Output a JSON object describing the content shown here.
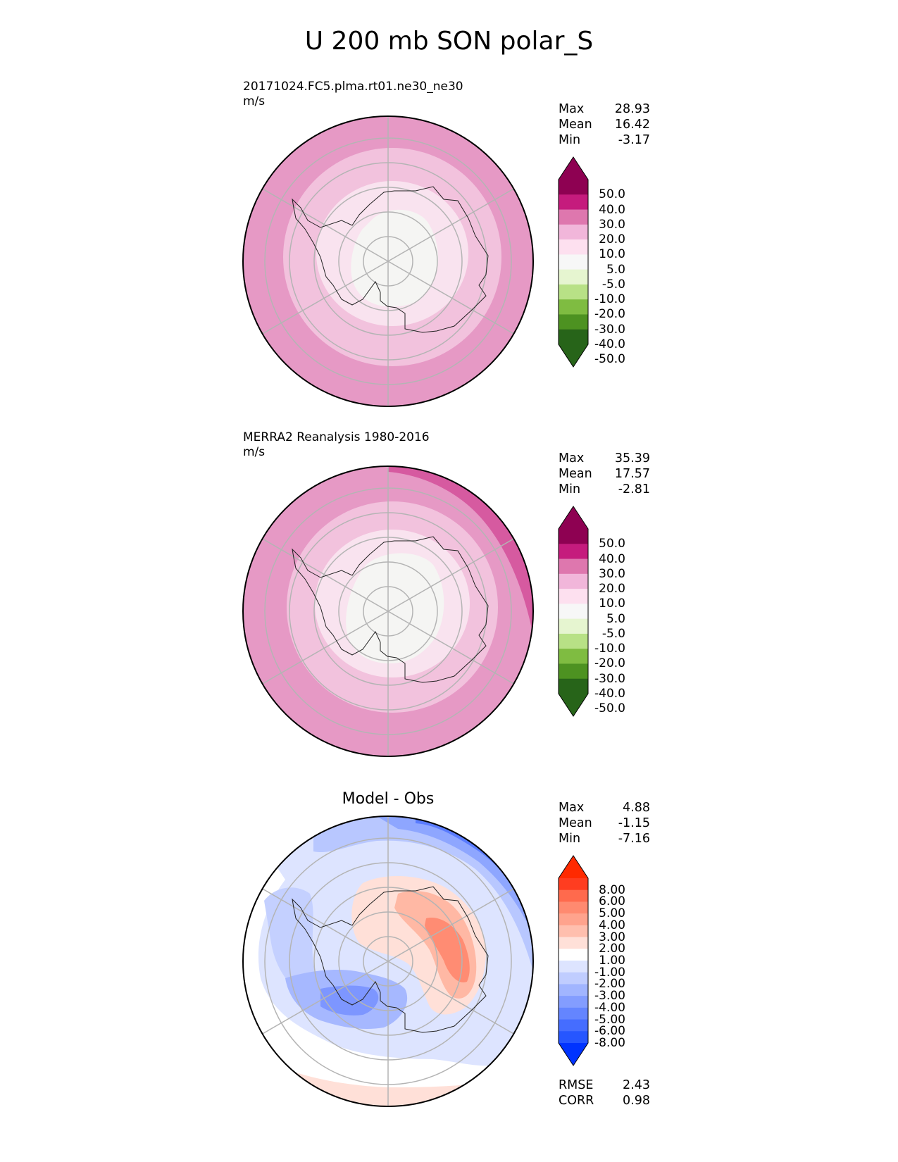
{
  "figure": {
    "title": "U 200 mb SON polar_S"
  },
  "panels": [
    {
      "id": "test",
      "label_line1": "20171024.FC5.plma.rt01.ne30_ne30",
      "label_line2": "m/s",
      "stats": {
        "Max": "28.93",
        "Mean": "16.42",
        "Min": "-3.17"
      },
      "colorbar": {
        "ticks": [
          "50.0",
          "40.0",
          "30.0",
          "20.0",
          "10.0",
          "5.0",
          "-5.0",
          "-10.0",
          "-20.0",
          "-30.0",
          "-40.0",
          "-50.0"
        ],
        "colors": [
          "#8e0152",
          "#c51b7d",
          "#de77ae",
          "#f1b6da",
          "#fde0ef",
          "#f7f7f7",
          "#e6f5d0",
          "#b8e186",
          "#7fbc41",
          "#4d9221",
          "#276419"
        ],
        "over_color": "#8e0152",
        "under_color": "#276419"
      }
    },
    {
      "id": "ref",
      "label_line1": "MERRA2 Reanalysis 1980-2016",
      "label_line2": "m/s",
      "stats": {
        "Max": "35.39",
        "Mean": "17.57",
        "Min": "-2.81"
      },
      "colorbar": {
        "ticks": [
          "50.0",
          "40.0",
          "30.0",
          "20.0",
          "10.0",
          "5.0",
          "-5.0",
          "-10.0",
          "-20.0",
          "-30.0",
          "-40.0",
          "-50.0"
        ],
        "colors": [
          "#8e0152",
          "#c51b7d",
          "#de77ae",
          "#f1b6da",
          "#fde0ef",
          "#f7f7f7",
          "#e6f5d0",
          "#b8e186",
          "#7fbc41",
          "#4d9221",
          "#276419"
        ],
        "over_color": "#8e0152",
        "under_color": "#276419"
      }
    },
    {
      "id": "diff",
      "title": "Model - Obs",
      "stats": {
        "Max": "4.88",
        "Mean": "-1.15",
        "Min": "-7.16"
      },
      "metrics": {
        "RMSE": "2.43",
        "CORR": "0.98"
      },
      "colorbar": {
        "ticks": [
          "8.00",
          "6.00",
          "5.00",
          "4.00",
          "3.00",
          "2.00",
          "1.00",
          "-1.00",
          "-2.00",
          "-3.00",
          "-4.00",
          "-5.00",
          "-6.00",
          "-8.00"
        ],
        "colors": [
          "#ff3d20",
          "#ff6a4d",
          "#ff8a70",
          "#ffa38d",
          "#ffbfae",
          "#ffe0d8",
          "#ffffff",
          "#dde4ff",
          "#c0cdff",
          "#a1b5ff",
          "#839dff",
          "#6485ff",
          "#456dff",
          "#2656ff"
        ],
        "over_color": "#ff2a00",
        "under_color": "#0033ff"
      }
    }
  ],
  "chart_data": [
    {
      "type": "heatmap",
      "title": "20171024.FC5.plma.rt01.ne30_ne30",
      "units": "m/s",
      "projection": "south polar stereographic",
      "variable": "U 200 mb SON",
      "levels": [
        -50,
        -40,
        -30,
        -20,
        -10,
        -5,
        5,
        10,
        20,
        30,
        40,
        50
      ],
      "stats": {
        "max": 28.93,
        "mean": 16.42,
        "min": -3.17
      }
    },
    {
      "type": "heatmap",
      "title": "MERRA2 Reanalysis 1980-2016",
      "units": "m/s",
      "projection": "south polar stereographic",
      "variable": "U 200 mb SON",
      "levels": [
        -50,
        -40,
        -30,
        -20,
        -10,
        -5,
        5,
        10,
        20,
        30,
        40,
        50
      ],
      "stats": {
        "max": 35.39,
        "mean": 17.57,
        "min": -2.81
      }
    },
    {
      "type": "heatmap",
      "title": "Model - Obs",
      "units": "m/s",
      "projection": "south polar stereographic",
      "levels": [
        -8,
        -6,
        -5,
        -4,
        -3,
        -2,
        -1,
        1,
        2,
        3,
        4,
        5,
        6,
        8
      ],
      "stats": {
        "max": 4.88,
        "mean": -1.15,
        "min": -7.16
      },
      "metrics": {
        "rmse": 2.43,
        "corr": 0.98
      }
    }
  ]
}
